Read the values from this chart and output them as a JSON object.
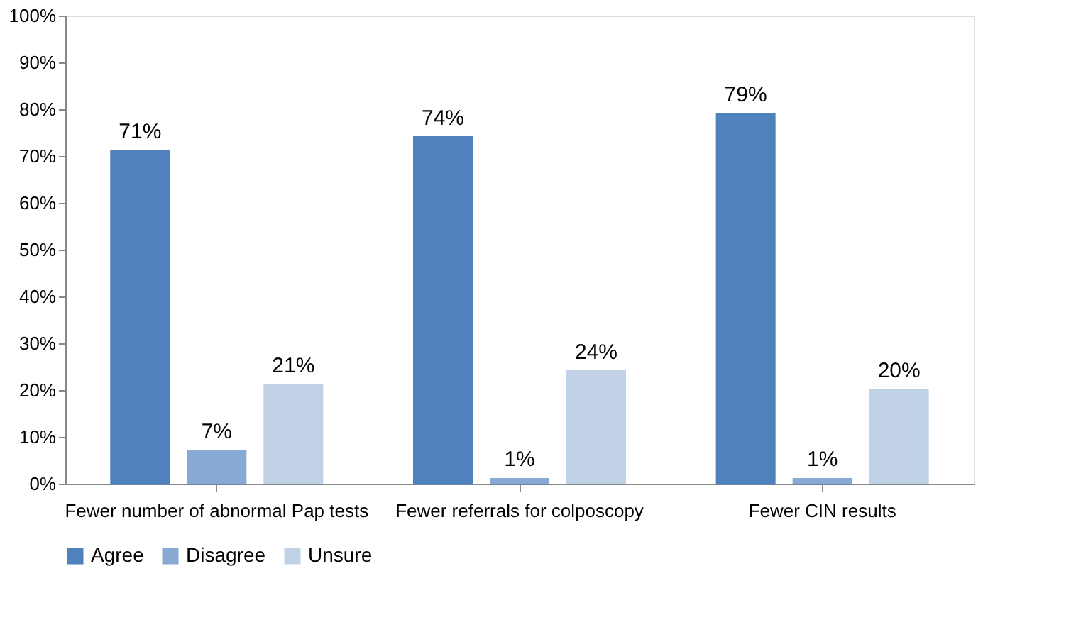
{
  "chart_data": {
    "type": "bar",
    "categories": [
      "Fewer number of abnormal Pap tests",
      "Fewer referrals for colposcopy",
      "Fewer CIN results"
    ],
    "series": [
      {
        "name": "Agree",
        "color": "#4f81bd",
        "values": [
          71,
          74,
          79
        ],
        "value_labels": [
          "71%",
          "74%",
          "79%"
        ]
      },
      {
        "name": "Disagree",
        "color": "#4f81bd",
        "values": [
          7,
          1,
          1
        ],
        "value_labels": [
          "7%",
          "1%",
          "1%"
        ]
      },
      {
        "name": "Unsure",
        "color": "#4f81bd",
        "values": [
          21,
          24,
          20
        ],
        "value_labels": [
          "21%",
          "24%",
          "20%"
        ]
      }
    ],
    "ylim": [
      0,
      100
    ],
    "yticks": [
      {
        "value": 0,
        "label": "0%"
      },
      {
        "value": 10,
        "label": "10%"
      },
      {
        "value": 20,
        "label": "20%"
      },
      {
        "value": 30,
        "label": "30%"
      },
      {
        "value": 40,
        "label": "40%"
      },
      {
        "value": 50,
        "label": "50%"
      },
      {
        "value": 60,
        "label": "60%"
      },
      {
        "value": 70,
        "label": "70%"
      },
      {
        "value": 80,
        "label": "80%"
      },
      {
        "value": 90,
        "label": "90%"
      },
      {
        "value": 100,
        "label": "100%"
      }
    ],
    "grid": false,
    "legend": "bottom"
  }
}
